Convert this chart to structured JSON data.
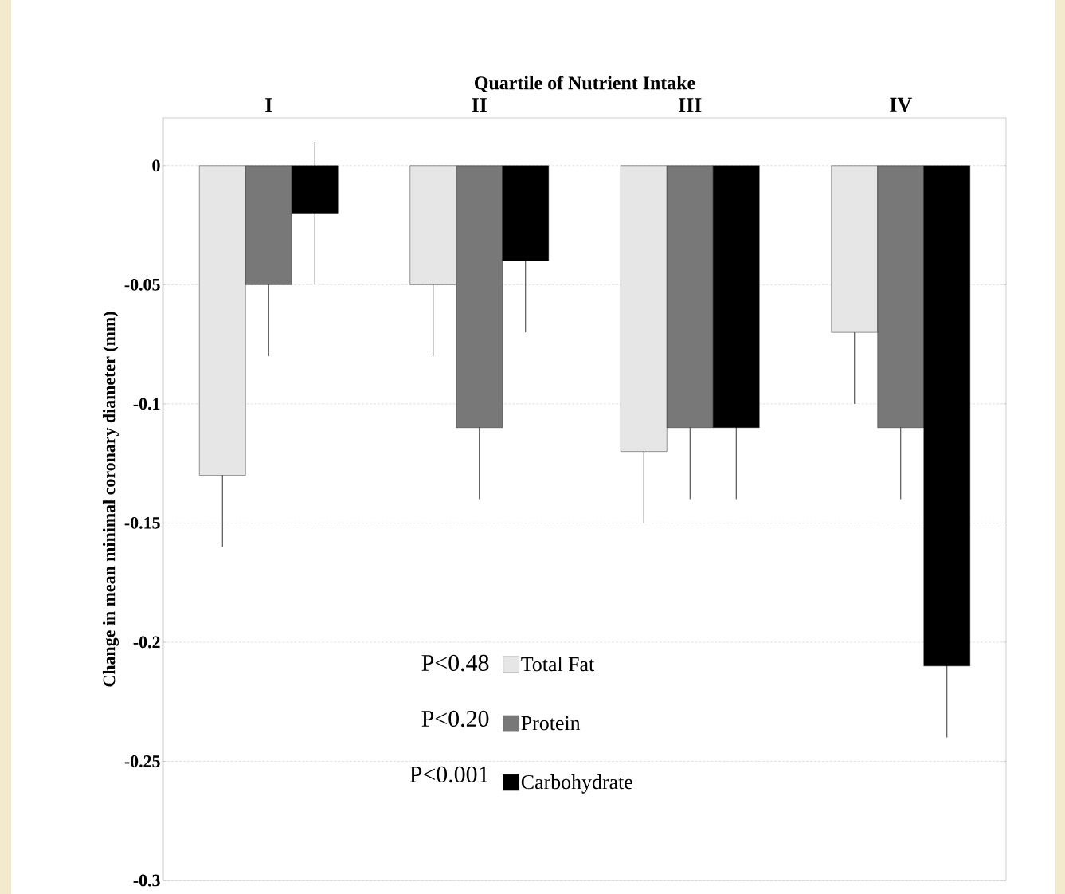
{
  "chart_data": {
    "type": "bar",
    "xlabel": "Quartile of Nutrient Intake",
    "ylabel": "Change in mean minimal coronary diameter (mm)",
    "categories": [
      "I",
      "II",
      "III",
      "IV"
    ],
    "series": [
      {
        "name": "Total Fat",
        "color": "#e6e6e6",
        "values": [
          -0.13,
          -0.05,
          -0.12,
          -0.07
        ],
        "errors": [
          0.03,
          0.03,
          0.03,
          0.03
        ]
      },
      {
        "name": "Protein",
        "color": "#787878",
        "values": [
          -0.05,
          -0.11,
          -0.11,
          -0.11
        ],
        "errors": [
          0.03,
          0.03,
          0.03,
          0.03
        ]
      },
      {
        "name": "Carbohydrate",
        "color": "#000000",
        "values": [
          -0.02,
          -0.04,
          -0.11,
          -0.21
        ],
        "errors": [
          0.03,
          0.03,
          0.03,
          0.03
        ]
      }
    ],
    "ylim": [
      -0.3,
      0.02
    ],
    "yticks": [
      0,
      {
        "value": -0.05,
        "label": "-0.05"
      },
      {
        "value": -0.1,
        "label": "-0.1"
      },
      {
        "value": -0.15,
        "label": "-0.15"
      },
      {
        "value": -0.2,
        "label": "-0.2"
      },
      {
        "value": -0.25,
        "label": "-0.25"
      },
      {
        "value": -0.3,
        "label": "-0.3"
      }
    ],
    "grid": "y",
    "legend": "bottom",
    "annotations": [
      "P<0.48",
      "P<0.20",
      "P<0.001"
    ]
  }
}
